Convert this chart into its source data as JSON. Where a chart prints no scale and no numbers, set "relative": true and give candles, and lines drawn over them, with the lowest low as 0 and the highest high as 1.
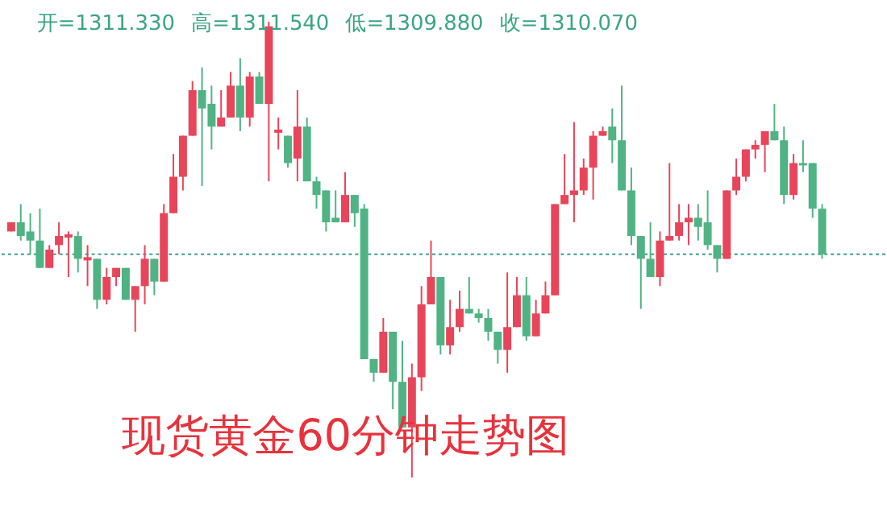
{
  "chart_data": {
    "type": "candlestick",
    "relative": true,
    "title": "现货黄金60分钟走势图",
    "annotations": [
      "开=1311.330",
      "高=1311.540",
      "低=1309.880",
      "收=1310.070"
    ],
    "categories": [
      null,
      null,
      null,
      null,
      null,
      null,
      null,
      null,
      null,
      null,
      null,
      null,
      null,
      null,
      null,
      null,
      null,
      null,
      null,
      null,
      null,
      null,
      null,
      null,
      null,
      null,
      null,
      null,
      null,
      null,
      null,
      null,
      null,
      null,
      null,
      null,
      null,
      null,
      null,
      null,
      null,
      null,
      null,
      null,
      null,
      null,
      null,
      null,
      null,
      null,
      null,
      null,
      null,
      null,
      null,
      null,
      null,
      null,
      null,
      null,
      null,
      null,
      null,
      null,
      null,
      null,
      null,
      null,
      null,
      null,
      null,
      null,
      null,
      null,
      null,
      null,
      null,
      null,
      null,
      null,
      null,
      null,
      null,
      null,
      null,
      null
    ],
    "ohlc": [
      [
        0.54,
        0.56,
        0.54,
        0.56
      ],
      [
        0.56,
        0.6,
        0.52,
        0.53
      ],
      [
        0.54,
        0.58,
        0.49,
        0.52
      ],
      [
        0.52,
        0.59,
        0.46,
        0.46
      ],
      [
        0.46,
        0.51,
        0.46,
        0.5
      ],
      [
        0.51,
        0.56,
        0.49,
        0.53
      ],
      [
        0.53,
        0.54,
        0.44,
        0.53
      ],
      [
        0.53,
        0.54,
        0.45,
        0.48
      ],
      [
        0.48,
        0.51,
        0.42,
        0.48
      ],
      [
        0.48,
        0.48,
        0.37,
        0.39
      ],
      [
        0.39,
        0.46,
        0.38,
        0.44
      ],
      [
        0.44,
        0.46,
        0.42,
        0.46
      ],
      [
        0.46,
        0.46,
        0.39,
        0.39
      ],
      [
        0.39,
        0.42,
        0.32,
        0.42
      ],
      [
        0.42,
        0.51,
        0.38,
        0.48
      ],
      [
        0.48,
        0.48,
        0.4,
        0.43
      ],
      [
        0.43,
        0.6,
        0.43,
        0.58
      ],
      [
        0.58,
        0.71,
        0.58,
        0.66
      ],
      [
        0.66,
        0.75,
        0.63,
        0.75
      ],
      [
        0.75,
        0.87,
        0.75,
        0.85
      ],
      [
        0.85,
        0.9,
        0.64,
        0.81
      ],
      [
        0.82,
        0.86,
        0.72,
        0.77
      ],
      [
        0.77,
        0.85,
        0.77,
        0.79
      ],
      [
        0.79,
        0.89,
        0.79,
        0.86
      ],
      [
        0.86,
        0.92,
        0.76,
        0.79
      ],
      [
        0.79,
        0.89,
        0.77,
        0.88
      ],
      [
        0.88,
        0.89,
        0.82,
        0.82
      ],
      [
        0.82,
        1,
        0.65,
        0.99
      ],
      [
        0.76,
        0.79,
        0.72,
        0.76
      ],
      [
        0.75,
        0.75,
        0.68,
        0.69
      ],
      [
        0.7,
        0.85,
        0.65,
        0.77
      ],
      [
        0.77,
        0.79,
        0.65,
        0.65
      ],
      [
        0.65,
        0.66,
        0.59,
        0.62
      ],
      [
        0.63,
        0.63,
        0.54,
        0.56
      ],
      [
        0.57,
        0.63,
        0.56,
        0.56
      ],
      [
        0.56,
        0.67,
        0.56,
        0.62
      ],
      [
        0.62,
        0.62,
        0.55,
        0.58
      ],
      [
        0.59,
        0.6,
        0.26,
        0.26
      ],
      [
        0.26,
        0.26,
        0.21,
        0.23
      ],
      [
        0.23,
        0.35,
        0.23,
        0.32
      ],
      [
        0.32,
        0.32,
        0.15,
        0.21
      ],
      [
        0.21,
        0.3,
        0.11,
        0.11
      ],
      [
        0.11,
        0.25,
        0,
        0.22
      ],
      [
        0.22,
        0.42,
        0.19,
        0.38
      ],
      [
        0.38,
        0.52,
        0.38,
        0.44
      ],
      [
        0.44,
        0.44,
        0.27,
        0.29
      ],
      [
        0.29,
        0.39,
        0.27,
        0.33
      ],
      [
        0.33,
        0.41,
        0.32,
        0.37
      ],
      [
        0.37,
        0.44,
        0.36,
        0.36
      ],
      [
        0.36,
        0.37,
        0.34,
        0.35
      ],
      [
        0.35,
        0.37,
        0.3,
        0.32
      ],
      [
        0.32,
        0.32,
        0.25,
        0.28
      ],
      [
        0.28,
        0.45,
        0.23,
        0.33
      ],
      [
        0.33,
        0.44,
        0.33,
        0.4
      ],
      [
        0.4,
        0.44,
        0.3,
        0.31
      ],
      [
        0.31,
        0.39,
        0.31,
        0.36
      ],
      [
        0.36,
        0.43,
        0.36,
        0.4
      ],
      [
        0.4,
        0.6,
        0.4,
        0.6
      ],
      [
        0.6,
        0.71,
        0.6,
        0.62
      ],
      [
        0.62,
        0.78,
        0.56,
        0.63
      ],
      [
        0.63,
        0.7,
        0.62,
        0.68
      ],
      [
        0.68,
        0.76,
        0.61,
        0.75
      ],
      [
        0.75,
        0.77,
        0.75,
        0.76
      ],
      [
        0.77,
        0.81,
        0.69,
        0.74
      ],
      [
        0.74,
        0.86,
        0.63,
        0.63
      ],
      [
        0.63,
        0.68,
        0.51,
        0.53
      ],
      [
        0.53,
        0.53,
        0.37,
        0.48
      ],
      [
        0.48,
        0.56,
        0.44,
        0.44
      ],
      [
        0.44,
        0.54,
        0.42,
        0.52
      ],
      [
        0.52,
        0.69,
        0.52,
        0.53
      ],
      [
        0.53,
        0.6,
        0.52,
        0.56
      ],
      [
        0.56,
        0.6,
        0.51,
        0.57
      ],
      [
        0.57,
        0.6,
        0.52,
        0.55
      ],
      [
        0.56,
        0.63,
        0.5,
        0.51
      ],
      [
        0.51,
        0.51,
        0.45,
        0.48
      ],
      [
        0.48,
        0.63,
        0.48,
        0.63
      ],
      [
        0.63,
        0.7,
        0.62,
        0.66
      ],
      [
        0.66,
        0.72,
        0.65,
        0.72
      ],
      [
        0.72,
        0.74,
        0.7,
        0.73
      ],
      [
        0.73,
        0.76,
        0.67,
        0.76
      ],
      [
        0.76,
        0.82,
        0.74,
        0.74
      ],
      [
        0.74,
        0.77,
        0.6,
        0.62
      ],
      [
        0.62,
        0.71,
        0.61,
        0.69
      ],
      [
        0.69,
        0.74,
        0.67,
        0.685
      ],
      [
        0.69,
        0.69,
        0.57,
        0.59
      ],
      [
        0.59,
        0.6,
        0.48,
        0.49
      ]
    ],
    "colors": [
      "#e8455a",
      "#4fb383",
      "#4fb383",
      "#4fb383",
      "#e8455a",
      "#e8455a",
      "#e8455a",
      "#4fb383",
      "#e8455a",
      "#4fb383",
      "#e8455a",
      "#e8455a",
      "#4fb383",
      "#e8455a",
      "#e8455a",
      "#4fb383",
      "#e8455a",
      "#e8455a",
      "#e8455a",
      "#e8455a",
      "#4fb383",
      "#4fb383",
      "#e8455a",
      "#e8455a",
      "#4fb383",
      "#e8455a",
      "#4fb383",
      "#e8455a",
      "#e8455a",
      "#4fb383",
      "#e8455a",
      "#4fb383",
      "#4fb383",
      "#4fb383",
      "#4fb383",
      "#e8455a",
      "#4fb383",
      "#4fb383",
      "#4fb383",
      "#e8455a",
      "#4fb383",
      "#4fb383",
      "#e8455a",
      "#e8455a",
      "#e8455a",
      "#4fb383",
      "#e8455a",
      "#e8455a",
      "#4fb383",
      "#4fb383",
      "#4fb383",
      "#4fb383",
      "#e8455a",
      "#e8455a",
      "#4fb383",
      "#e8455a",
      "#e8455a",
      "#e8455a",
      "#e8455a",
      "#e8455a",
      "#e8455a",
      "#e8455a",
      "#e8455a",
      "#4fb383",
      "#4fb383",
      "#4fb383",
      "#4fb383",
      "#4fb383",
      "#e8455a",
      "#e8455a",
      "#e8455a",
      "#e8455a",
      "#4fb383",
      "#4fb383",
      "#4fb383",
      "#e8455a",
      "#e8455a",
      "#e8455a",
      "#e8455a",
      "#e8455a",
      "#4fb383",
      "#4fb383",
      "#e8455a",
      "#4fb383",
      "#4fb383",
      "#4fb383"
    ],
    "ref_lines": [
      {
        "axis": "y",
        "value": 0.49,
        "color": "#3d9c8c",
        "line_style": "dotted"
      }
    ]
  }
}
